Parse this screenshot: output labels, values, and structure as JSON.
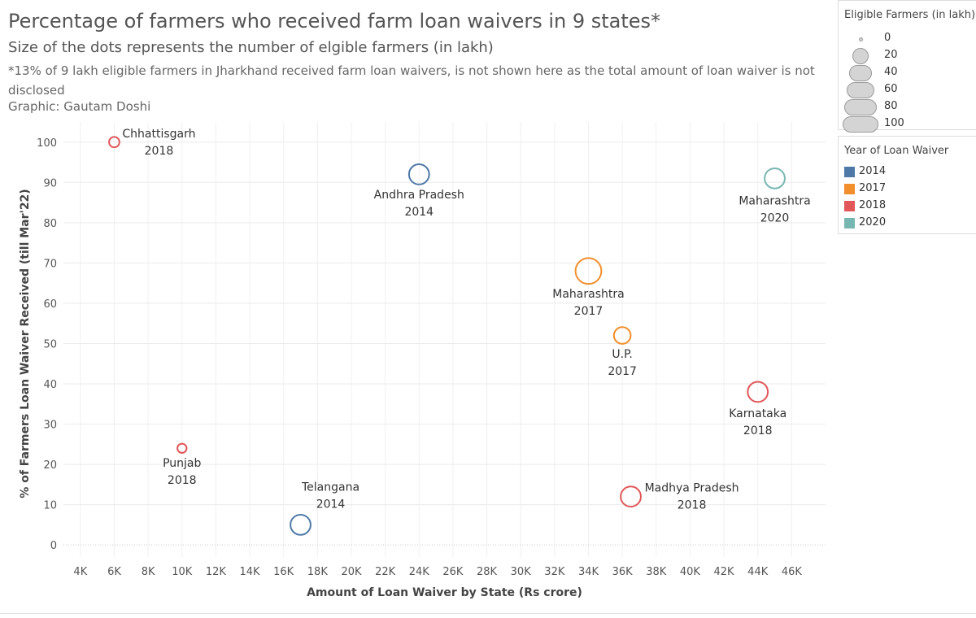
{
  "header": {
    "title": "Percentage of farmers who received farm loan waivers in 9 states*",
    "subtitle": "Size of the dots represents the number of elgible farmers (in lakh)",
    "note": "*13% of 9 lakh eligible farmers in Jharkhand received farm loan waivers, is not shown here as the total amount of loan waiver is not disclosed",
    "credit": "Graphic: Gautam Doshi"
  },
  "size_legend": {
    "title": "Eligible Farmers (in lakh)",
    "items": [
      "0",
      "20",
      "40",
      "60",
      "80",
      "100"
    ]
  },
  "color_legend": {
    "title": "Year of Loan Waiver",
    "items": [
      {
        "label": "2014",
        "color": "#4e79a7"
      },
      {
        "label": "2017",
        "color": "#f28e2b"
      },
      {
        "label": "2018",
        "color": "#e15759"
      },
      {
        "label": "2020",
        "color": "#76b7b2"
      }
    ]
  },
  "chart_data": {
    "type": "scatter",
    "xlabel": "Amount of Loan Waiver by State (Rs crore)",
    "ylabel": "% of Farmers Loan Waiver Received (till Mar'22)",
    "xlim": [
      3000,
      48000
    ],
    "ylim": [
      -3,
      105
    ],
    "x_ticks": [
      "4K",
      "6K",
      "8K",
      "10K",
      "12K",
      "14K",
      "16K",
      "18K",
      "20K",
      "22K",
      "24K",
      "26K",
      "28K",
      "30K",
      "32K",
      "34K",
      "36K",
      "38K",
      "40K",
      "42K",
      "44K",
      "46K"
    ],
    "x_tick_values": [
      4000,
      6000,
      8000,
      10000,
      12000,
      14000,
      16000,
      18000,
      20000,
      22000,
      24000,
      26000,
      28000,
      30000,
      32000,
      34000,
      36000,
      38000,
      40000,
      42000,
      44000,
      46000
    ],
    "y_ticks": [
      0,
      10,
      20,
      30,
      40,
      50,
      60,
      70,
      80,
      90,
      100
    ],
    "grid": true,
    "points": [
      {
        "state": "Chhattisgarh",
        "year": "2018",
        "x": 6000,
        "y": 100,
        "farmers": 17
      },
      {
        "state": "Andhra Pradesh",
        "year": "2014",
        "x": 24000,
        "y": 92,
        "farmers": 60
      },
      {
        "state": "Maharashtra",
        "year": "2020",
        "x": 45000,
        "y": 91,
        "farmers": 60
      },
      {
        "state": "Maharashtra",
        "year": "2017",
        "x": 34000,
        "y": 68,
        "farmers": 85
      },
      {
        "state": "U.P.",
        "year": "2017",
        "x": 36000,
        "y": 52,
        "farmers": 45
      },
      {
        "state": "Karnataka",
        "year": "2018",
        "x": 44000,
        "y": 38,
        "farmers": 60
      },
      {
        "state": "Punjab",
        "year": "2018",
        "x": 10000,
        "y": 24,
        "farmers": 12
      },
      {
        "state": "Madhya Pradesh",
        "year": "2018",
        "x": 36500,
        "y": 12,
        "farmers": 60
      },
      {
        "state": "Telangana",
        "year": "2014",
        "x": 17000,
        "y": 5,
        "farmers": 60
      }
    ]
  }
}
